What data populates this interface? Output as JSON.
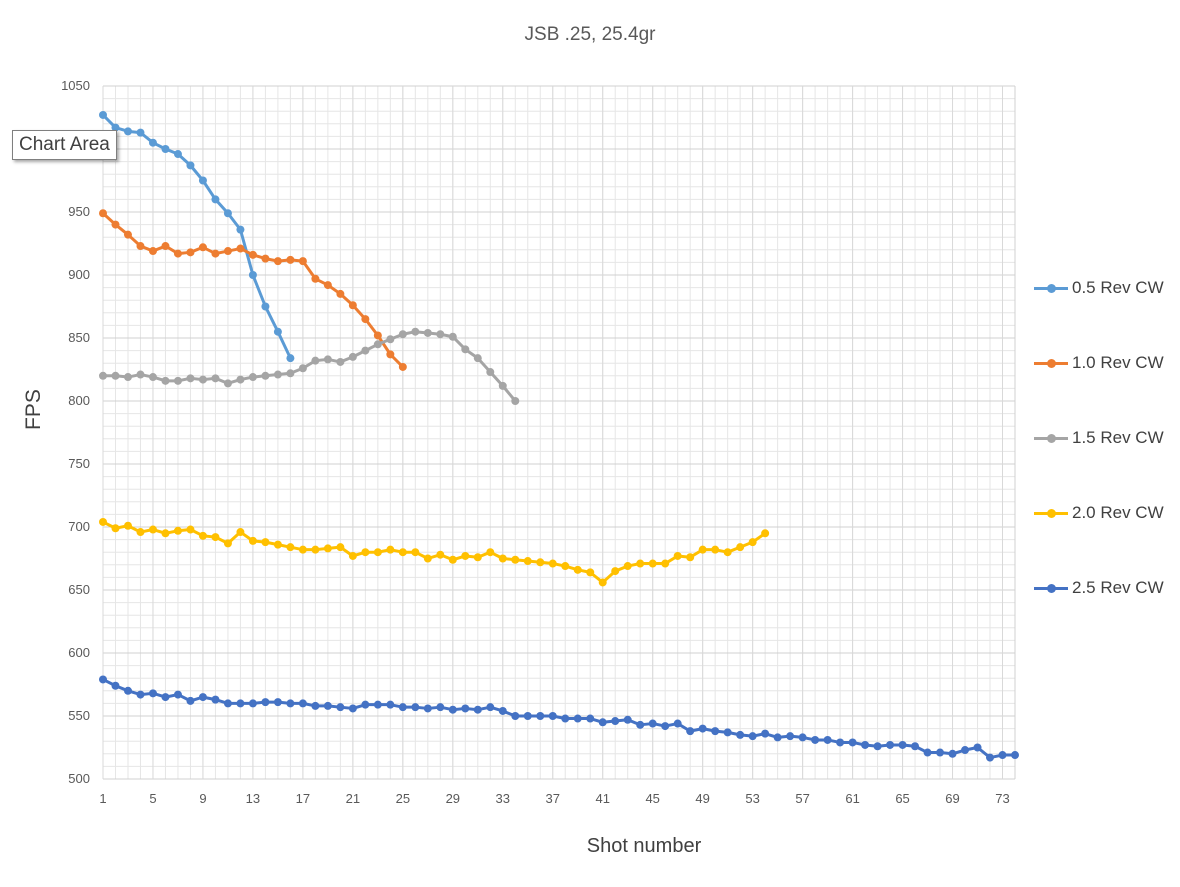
{
  "chart_data": {
    "type": "line",
    "title": "JSB .25, 25.4gr",
    "xlabel": "Shot number",
    "ylabel": "FPS",
    "ylim": [
      500,
      1050
    ],
    "yticks": [
      500,
      550,
      600,
      650,
      700,
      750,
      800,
      850,
      900,
      950,
      1000,
      1050
    ],
    "xlim": [
      1,
      74
    ],
    "xticks": [
      1,
      5,
      9,
      13,
      17,
      21,
      25,
      29,
      33,
      37,
      41,
      45,
      49,
      53,
      57,
      61,
      65,
      69,
      73
    ],
    "grid": true,
    "legend_position": "right",
    "series": [
      {
        "name": "0.5 Rev CW",
        "color": "#5b9bd5",
        "values": [
          1027,
          1017,
          1014,
          1013,
          1005,
          1000,
          996,
          987,
          975,
          960,
          949,
          936,
          900,
          875,
          855,
          834
        ]
      },
      {
        "name": "1.0 Rev CW",
        "color": "#ed7d31",
        "values": [
          949,
          940,
          932,
          923,
          919,
          923,
          917,
          918,
          922,
          917,
          919,
          921,
          916,
          913,
          911,
          912,
          911,
          897,
          892,
          885,
          876,
          865,
          852,
          837,
          827
        ]
      },
      {
        "name": "1.5 Rev CW",
        "color": "#a5a5a5",
        "values": [
          820,
          820,
          819,
          821,
          819,
          816,
          816,
          818,
          817,
          818,
          814,
          817,
          819,
          820,
          821,
          822,
          826,
          832,
          833,
          831,
          835,
          840,
          845,
          849,
          853,
          855,
          854,
          853,
          851,
          841,
          834,
          823,
          812,
          800
        ]
      },
      {
        "name": "2.0 Rev CW",
        "color": "#ffc000",
        "values": [
          704,
          699,
          701,
          696,
          698,
          695,
          697,
          698,
          693,
          692,
          687,
          696,
          689,
          688,
          686,
          684,
          682,
          682,
          683,
          684,
          677,
          680,
          680,
          682,
          680,
          680,
          675,
          678,
          674,
          677,
          676,
          680,
          675,
          674,
          673,
          672,
          671,
          669,
          666,
          664,
          656,
          665,
          669,
          671,
          671,
          671,
          677,
          676,
          682,
          682,
          680,
          684,
          688,
          695
        ]
      },
      {
        "name": "2.5 Rev CW",
        "color": "#4472c4",
        "values": [
          579,
          574,
          570,
          567,
          568,
          565,
          567,
          562,
          565,
          563,
          560,
          560,
          560,
          561,
          561,
          560,
          560,
          558,
          558,
          557,
          556,
          559,
          559,
          559,
          557,
          557,
          556,
          557,
          555,
          556,
          555,
          557,
          554,
          550,
          550,
          550,
          550,
          548,
          548,
          548,
          545,
          546,
          547,
          543,
          544,
          542,
          544,
          538,
          540,
          538,
          537,
          535,
          534,
          536,
          533,
          534,
          533,
          531,
          531,
          529,
          529,
          527,
          526,
          527,
          527,
          526,
          521,
          521,
          520,
          523,
          525,
          517,
          519,
          519
        ]
      }
    ]
  },
  "tooltip": {
    "text": "Chart Area"
  }
}
